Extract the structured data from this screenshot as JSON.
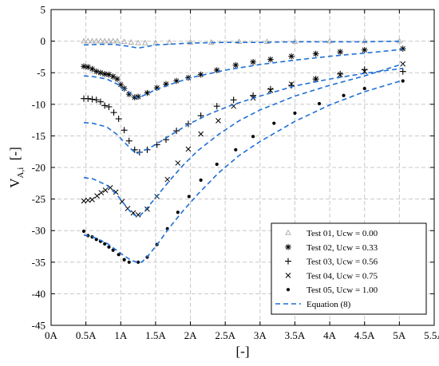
{
  "chart_data": {
    "type": "scatter",
    "title": "",
    "xlabel": "[-]",
    "ylabel": "V",
    "ylabel_sub": "A,i",
    "ylabel_unit": "[-]",
    "xlim": [
      0,
      5.5
    ],
    "ylim": [
      -45,
      5
    ],
    "grid": true,
    "legend_position": "bottom-right",
    "x_ticks": [
      0,
      0.5,
      1,
      1.5,
      2,
      2.5,
      3,
      3.5,
      4,
      4.5,
      5,
      5.5
    ],
    "x_tick_labels": [
      "0A",
      "0.5A",
      "1A",
      "1.5A",
      "2A",
      "2.5A",
      "3A",
      "3.5A",
      "4A",
      "4.5A",
      "5A",
      "5.5A"
    ],
    "y_ticks": [
      5,
      0,
      -5,
      -10,
      -15,
      -20,
      -25,
      -30,
      -35,
      -40,
      -45
    ],
    "y_tick_labels": [
      "5",
      "0",
      "-5",
      "-10",
      "-15",
      "-20",
      "-25",
      "-30",
      "-35",
      "-40",
      "-45"
    ],
    "series": [
      {
        "name": "Test 01, Ucw = 0.00",
        "marker": "triangle",
        "color": "#a6a6a6",
        "x": [
          0.47,
          0.53,
          0.59,
          0.65,
          0.71,
          0.77,
          0.83,
          0.89,
          0.95,
          1.05,
          1.15,
          1.25,
          1.35,
          1.5,
          1.7,
          2.0,
          2.3,
          2.7,
          3.1,
          3.5,
          4.0,
          4.5,
          5.0
        ],
        "y": [
          0,
          0,
          0,
          0,
          0,
          0,
          0,
          0,
          0,
          -0.1,
          -0.2,
          -0.3,
          -0.3,
          -0.3,
          -0.2,
          -0.2,
          -0.2,
          -0.1,
          -0.1,
          -0.1,
          0,
          0,
          0
        ]
      },
      {
        "name": "Test 02, Ucw = 0.33",
        "marker": "asterisk",
        "color": "#000000",
        "x": [
          0.47,
          0.53,
          0.59,
          0.65,
          0.71,
          0.77,
          0.83,
          0.89,
          0.95,
          1.0,
          1.05,
          1.12,
          1.2,
          1.25,
          1.38,
          1.52,
          1.65,
          1.8,
          1.97,
          2.15,
          2.38,
          2.65,
          2.9,
          3.15,
          3.45,
          3.8,
          4.15,
          4.5,
          5.05
        ],
        "y": [
          -4.0,
          -4.1,
          -4.4,
          -4.8,
          -5.0,
          -5.2,
          -5.3,
          -5.6,
          -6.0,
          -6.9,
          -7.5,
          -8.4,
          -8.9,
          -8.8,
          -8.2,
          -7.4,
          -6.8,
          -6.3,
          -5.8,
          -5.3,
          -4.6,
          -3.8,
          -3.3,
          -2.9,
          -2.4,
          -2.0,
          -1.7,
          -1.4,
          -1.2
        ]
      },
      {
        "name": "Test 03, Ucw = 0.56",
        "marker": "plus",
        "color": "#000000",
        "x": [
          0.47,
          0.53,
          0.59,
          0.65,
          0.71,
          0.77,
          0.83,
          0.9,
          0.97,
          1.05,
          1.12,
          1.2,
          1.27,
          1.38,
          1.52,
          1.65,
          1.8,
          1.97,
          2.15,
          2.38,
          2.62,
          2.9,
          3.15,
          3.45,
          3.8,
          4.15,
          4.5,
          5.05
        ],
        "y": [
          -9.1,
          -9.1,
          -9.2,
          -9.3,
          -9.6,
          -10.2,
          -10.4,
          -11.3,
          -12.3,
          -14.1,
          -15.8,
          -17.2,
          -17.6,
          -17.2,
          -16.4,
          -15.6,
          -14.2,
          -13.1,
          -11.8,
          -10.3,
          -9.3,
          -8.6,
          -7.6,
          -7.0,
          -6.0,
          -5.2,
          -4.5,
          -4.8
        ]
      },
      {
        "name": "Test 04, Ucw = 0.75",
        "marker": "cross",
        "color": "#000000",
        "x": [
          0.47,
          0.53,
          0.59,
          0.66,
          0.72,
          0.78,
          0.85,
          0.93,
          1.02,
          1.1,
          1.18,
          1.25,
          1.38,
          1.52,
          1.67,
          1.82,
          1.97,
          2.15,
          2.4,
          2.62,
          2.9,
          3.15,
          3.45,
          3.8,
          4.15,
          4.5,
          5.05
        ],
        "y": [
          -25.3,
          -25.2,
          -25.1,
          -24.5,
          -24.0,
          -23.6,
          -23.2,
          -23.9,
          -25.4,
          -26.5,
          -27.2,
          -27.5,
          -26.6,
          -24.6,
          -21.9,
          -19.3,
          -17.1,
          -14.7,
          -12.6,
          -10.3,
          -9.0,
          -7.8,
          -6.8,
          -6.0,
          -5.3,
          -4.8,
          -3.6
        ]
      },
      {
        "name": "Test 05, Ucw = 1.00",
        "marker": "dot",
        "color": "#000000",
        "x": [
          0.47,
          0.53,
          0.59,
          0.65,
          0.71,
          0.77,
          0.83,
          0.89,
          0.97,
          1.05,
          1.12,
          1.25,
          1.38,
          1.52,
          1.67,
          1.82,
          1.98,
          2.15,
          2.38,
          2.65,
          2.9,
          3.2,
          3.5,
          3.85,
          4.2,
          4.5,
          5.05
        ],
        "y": [
          -30.1,
          -30.8,
          -31.0,
          -31.4,
          -31.7,
          -32.1,
          -32.6,
          -33.1,
          -33.8,
          -34.6,
          -35.0,
          -35.0,
          -34.2,
          -32.2,
          -29.7,
          -27.1,
          -24.6,
          -22.0,
          -19.5,
          -17.2,
          -15.1,
          -13.0,
          -11.4,
          -9.9,
          -8.6,
          -7.5,
          -6.3
        ]
      },
      {
        "name": "Equation (8)",
        "marker": "dashed-line",
        "color": "#1f6fd6",
        "lines": [
          {
            "x": [
              0.47,
              0.7,
              0.9,
              1.1,
              1.25,
              1.5,
              2.0,
              2.5,
              3.0,
              3.5,
              4.0,
              4.5,
              5.05
            ],
            "y": [
              -0.6,
              -0.5,
              -0.5,
              -0.8,
              -1.1,
              -0.6,
              -0.3,
              -0.2,
              -0.2,
              -0.1,
              -0.1,
              -0.1,
              0
            ]
          },
          {
            "x": [
              0.47,
              0.6,
              0.8,
              0.95,
              1.05,
              1.15,
              1.25,
              1.35,
              1.5,
              1.7,
              2.0,
              2.5,
              3.0,
              3.5,
              4.0,
              4.5,
              5.05
            ],
            "y": [
              -5.5,
              -5.6,
              -6.0,
              -6.8,
              -7.6,
              -8.4,
              -9.0,
              -8.5,
              -7.7,
              -6.9,
              -5.8,
              -4.6,
              -3.7,
              -3.0,
              -2.4,
              -1.9,
              -1.3
            ]
          },
          {
            "x": [
              0.47,
              0.6,
              0.8,
              0.95,
              1.05,
              1.15,
              1.22,
              1.3,
              1.45,
              1.6,
              1.8,
              2.0,
              2.3,
              2.6,
              3.0,
              3.5,
              4.0,
              4.5,
              5.05
            ],
            "y": [
              -12.9,
              -13.0,
              -13.6,
              -14.8,
              -16.0,
              -17.1,
              -17.8,
              -17.5,
              -16.7,
              -15.7,
              -14.3,
              -13.0,
              -11.4,
              -10.1,
              -8.7,
              -7.1,
              -6.0,
              -5.1,
              -4.3
            ]
          },
          {
            "x": [
              0.47,
              0.6,
              0.8,
              0.95,
              1.05,
              1.15,
              1.25,
              1.35,
              1.5,
              1.7,
              1.9,
              2.1,
              2.4,
              2.7,
              3.0,
              3.5,
              4.0,
              4.5,
              5.05
            ],
            "y": [
              -21.6,
              -21.8,
              -22.8,
              -24.4,
              -25.8,
              -27.2,
              -27.9,
              -26.8,
              -24.8,
              -22.1,
              -19.6,
              -17.4,
              -14.8,
              -12.6,
              -10.9,
              -8.7,
              -7.0,
              -5.5,
              -3.6
            ]
          },
          {
            "x": [
              0.47,
              0.6,
              0.8,
              0.95,
              1.05,
              1.15,
              1.23,
              1.3,
              1.4,
              1.55,
              1.7,
              1.9,
              2.1,
              2.4,
              2.7,
              3.0,
              3.5,
              4.0,
              4.5,
              5.05
            ],
            "y": [
              -30.7,
              -31.0,
              -32.0,
              -33.2,
              -34.0,
              -34.7,
              -35.0,
              -35.0,
              -33.9,
              -31.8,
              -29.5,
              -26.8,
              -24.3,
              -20.9,
              -18.1,
              -15.9,
              -12.7,
              -10.1,
              -8.0,
              -6.2
            ]
          }
        ]
      }
    ]
  }
}
